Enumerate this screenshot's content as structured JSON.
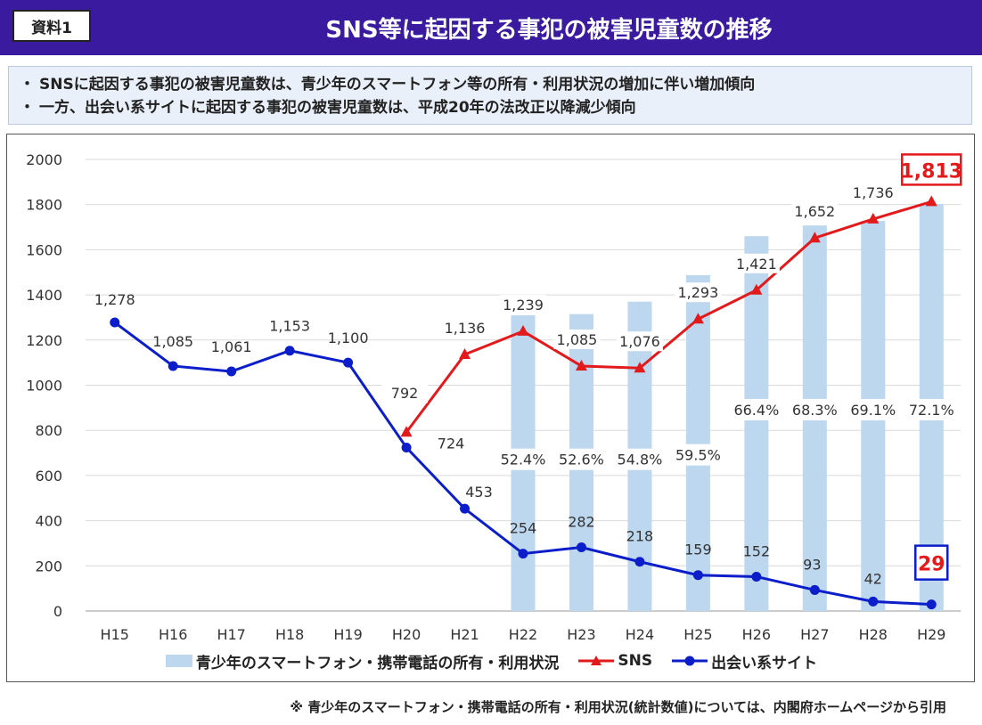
{
  "header": {
    "badge": "資料1",
    "title": "SNS等に起因する事犯の被害児童数の推移",
    "colors": {
      "header_bg": "#3a1a9e"
    }
  },
  "summary": {
    "bullet": "・",
    "lines": [
      "SNSに起因する事犯の被害児童数は、青少年のスマートフォン等の所有・利用状況の増加に伴い増加傾向",
      "一方、出会い系サイトに起因する事犯の被害児童数は、平成20年の法改正以降減少傾向"
    ]
  },
  "chart_data": {
    "type": "line",
    "categories": [
      "H15",
      "H16",
      "H17",
      "H18",
      "H19",
      "H20",
      "H21",
      "H22",
      "H23",
      "H24",
      "H25",
      "H26",
      "H27",
      "H28",
      "H29"
    ],
    "ylim": [
      0,
      2000
    ],
    "yticks": [
      0,
      200,
      400,
      600,
      800,
      1000,
      1200,
      1400,
      1600,
      1800,
      2000
    ],
    "grid": true,
    "legend_position": "bottom",
    "series": [
      {
        "name": "青少年のスマートフォン・携帯電話の所有・利用状況",
        "kind": "bar",
        "color": "#bdd7ee",
        "percent_values": [
          null,
          null,
          null,
          null,
          null,
          null,
          null,
          52.4,
          52.6,
          54.8,
          59.5,
          66.4,
          68.3,
          69.1,
          72.1
        ],
        "labels": [
          "",
          "",
          "",
          "",
          "",
          "",
          "",
          "52.4%",
          "52.6%",
          "54.8%",
          "59.5%",
          "66.4%",
          "68.3%",
          "69.1%",
          "72.1%"
        ]
      },
      {
        "name": "SNS",
        "kind": "line",
        "color": "#e31a1c",
        "marker": "triangle",
        "values": [
          null,
          null,
          null,
          null,
          null,
          792,
          1136,
          1239,
          1085,
          1076,
          1293,
          1421,
          1652,
          1736,
          1813
        ],
        "labels": [
          "",
          "",
          "",
          "",
          "",
          "792",
          "1,136",
          "1,239",
          "1,085",
          "1,076",
          "1,293",
          "1,421",
          "1,652",
          "1,736",
          "1,813"
        ]
      },
      {
        "name": "出会い系サイト",
        "kind": "line",
        "color": "#0b1ec9",
        "marker": "circle",
        "values": [
          1278,
          1085,
          1061,
          1153,
          1100,
          724,
          453,
          254,
          282,
          218,
          159,
          152,
          93,
          42,
          29
        ],
        "labels": [
          "1,278",
          "1,085",
          "1,061",
          "1,153",
          "1,100",
          "724",
          "453",
          "254",
          "282",
          "218",
          "159",
          "152",
          "93",
          "42",
          "29"
        ]
      }
    ]
  },
  "legend": {
    "items": [
      {
        "label": "青少年のスマートフォン・携帯電話の所有・利用状況",
        "icon": "bar-swatch"
      },
      {
        "label": "SNS",
        "icon": "triangle-line"
      },
      {
        "label": "出会い系サイト",
        "icon": "circle-line"
      }
    ]
  },
  "footnote": "※ 青少年のスマートフォン・携帯電話の所有・利用状況(統計数値)については、内閣府ホームページから引用"
}
